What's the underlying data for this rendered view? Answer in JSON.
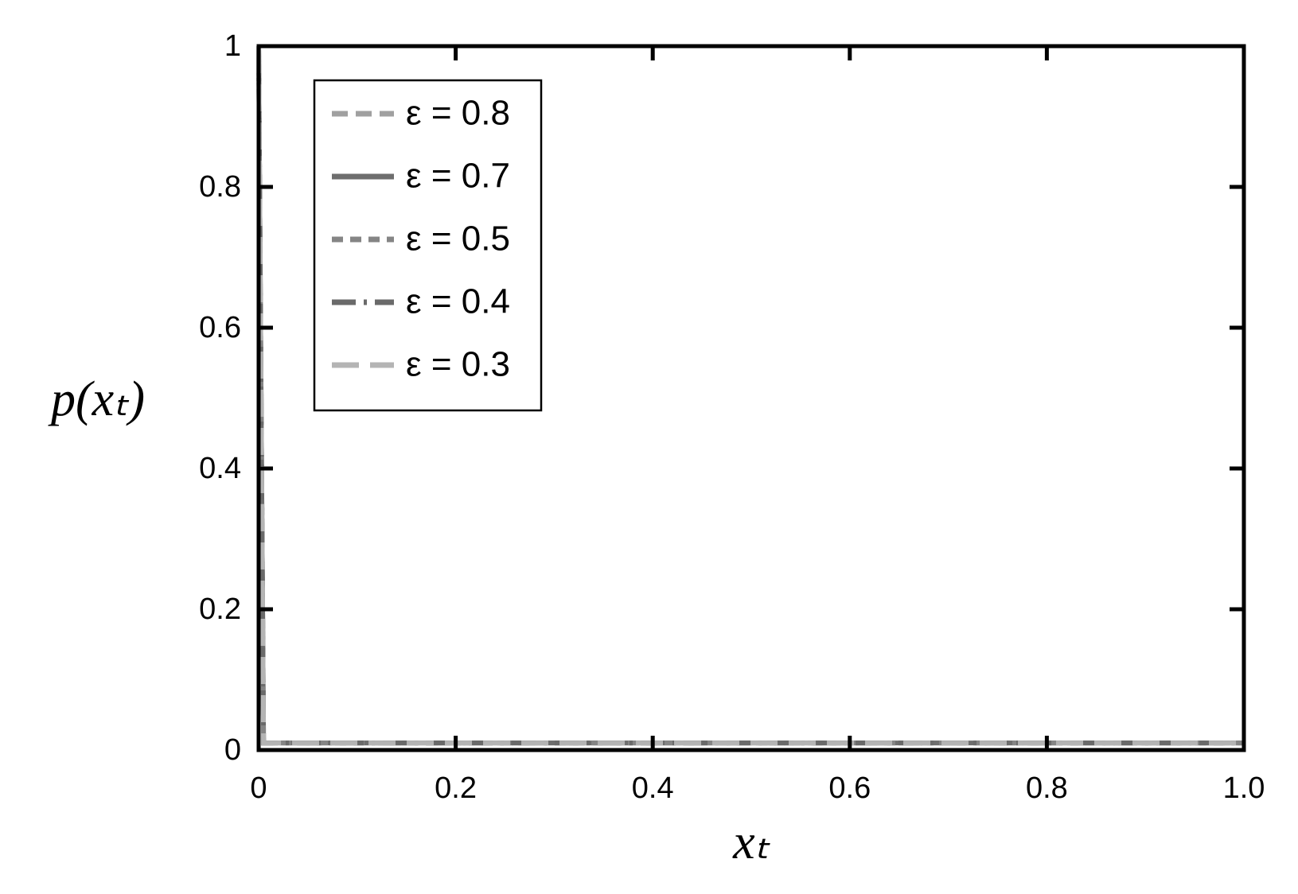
{
  "chart_data": {
    "type": "line",
    "xlabel": "xₜ",
    "ylabel": "p(xₜ)",
    "x": [
      0,
      0.005,
      1.0
    ],
    "series": [
      {
        "name": "ε = 0.8",
        "color": "#a0a0a0",
        "dash": "dashed",
        "values": [
          1,
          0.01,
          0.01
        ]
      },
      {
        "name": "ε = 0.7",
        "color": "#6e6e6e",
        "dash": "solid",
        "values": [
          1,
          0.01,
          0.01
        ]
      },
      {
        "name": "ε = 0.5",
        "color": "#858585",
        "dash": "short-dash",
        "values": [
          1,
          0.01,
          0.01
        ]
      },
      {
        "name": "ε = 0.4",
        "color": "#6a6a6a",
        "dash": "dash-dot",
        "values": [
          1,
          0.01,
          0.01
        ]
      },
      {
        "name": "ε = 0.3",
        "color": "#b4b4b4",
        "dash": "long-dash",
        "values": [
          1,
          0.01,
          0.01
        ]
      }
    ],
    "xlim": [
      0,
      1
    ],
    "ylim": [
      0,
      1
    ],
    "xticks": [
      0,
      0.2,
      0.4,
      0.6,
      0.8,
      {
        "value": 1,
        "label": "1.0"
      }
    ],
    "yticks": [
      0,
      0.2,
      0.4,
      0.6,
      0.8,
      1
    ],
    "grid": false,
    "legend": "upper left"
  }
}
